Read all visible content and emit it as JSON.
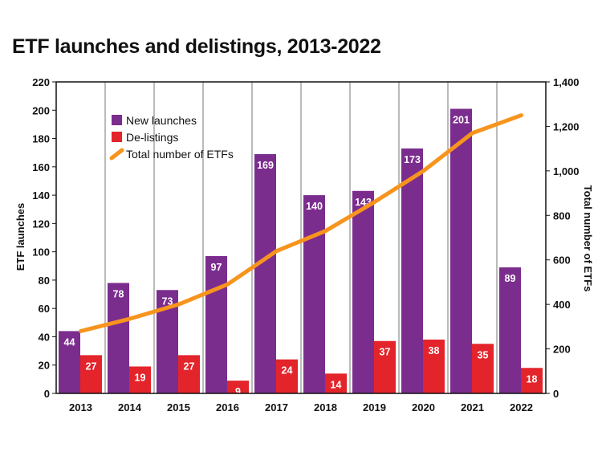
{
  "chart_data": {
    "type": "bar",
    "title": "ETF launches and delistings, 2013-2022",
    "categories": [
      "2013",
      "2014",
      "2015",
      "2016",
      "2017",
      "2018",
      "2019",
      "2020",
      "2021",
      "2022"
    ],
    "series": [
      {
        "name": "New launches",
        "type": "bar",
        "axis": "left",
        "color": "#7b2d8e",
        "values": [
          44,
          78,
          73,
          97,
          169,
          140,
          143,
          173,
          201,
          89
        ]
      },
      {
        "name": "De-listings",
        "type": "bar",
        "axis": "left",
        "color": "#e3242b",
        "values": [
          27,
          19,
          27,
          9,
          24,
          14,
          37,
          38,
          35,
          18
        ]
      },
      {
        "name": "Total number of ETFs",
        "type": "line",
        "axis": "right",
        "color": "#f7941d",
        "values": [
          280,
          335,
          400,
          490,
          640,
          730,
          860,
          1000,
          1170,
          1250
        ]
      }
    ],
    "ylabel": "ETF launches",
    "ylim": [
      0,
      220
    ],
    "yticks": [
      0,
      20,
      40,
      60,
      80,
      100,
      120,
      140,
      160,
      180,
      200,
      220
    ],
    "y2label": "Total number of ETFs",
    "y2lim": [
      0,
      1400
    ],
    "y2ticks": [
      "0",
      "200",
      "400",
      "600",
      "800",
      "1,000",
      "1,200",
      "1,400"
    ],
    "legend_position": "top-left",
    "grid": "vertical separators between years"
  }
}
